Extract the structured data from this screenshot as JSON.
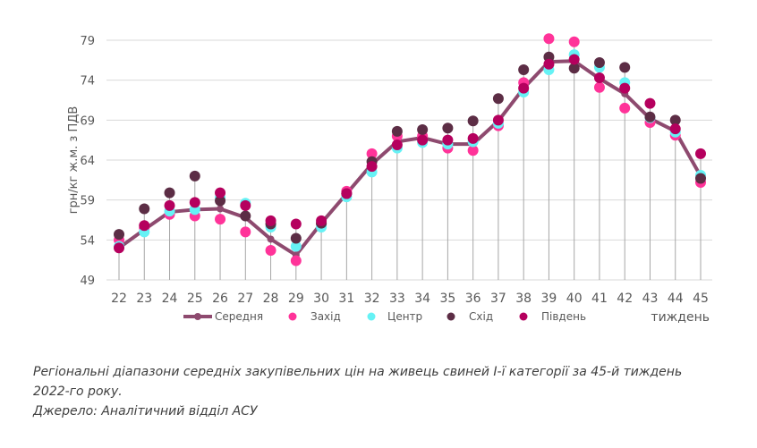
{
  "chart_data": {
    "type": "line",
    "title": "",
    "xlabel": "тиждень",
    "ylabel": "грн/кг ж.м. з ПДВ",
    "ylim": [
      49,
      79
    ],
    "yticks": [
      49,
      54,
      59,
      64,
      69,
      74,
      79
    ],
    "grid": true,
    "legend_position": "bottom",
    "categories": [
      "22",
      "23",
      "24",
      "25",
      "26",
      "27",
      "28",
      "29",
      "30",
      "31",
      "32",
      "33",
      "34",
      "35",
      "36",
      "37",
      "38",
      "39",
      "40",
      "41",
      "42",
      "43",
      "44",
      "45"
    ],
    "series": [
      {
        "name": "Середня",
        "type": "line",
        "color": "#8e4a6f",
        "values": [
          53.0,
          55.3,
          57.5,
          57.8,
          57.9,
          56.8,
          54.1,
          52.1,
          56.1,
          59.8,
          63.5,
          66.3,
          66.8,
          66.0,
          66.0,
          68.9,
          73.0,
          76.3,
          76.4,
          74.2,
          72.3,
          69.2,
          67.6,
          62.0
        ]
      },
      {
        "name": "Захід",
        "type": "scatter",
        "color": "#ff3399",
        "values": [
          54.0,
          55.5,
          57.2,
          57.0,
          56.6,
          55.0,
          52.7,
          51.4,
          56.0,
          60.1,
          64.8,
          67.0,
          67.0,
          65.5,
          65.2,
          68.3,
          73.7,
          79.2,
          78.8,
          73.1,
          70.5,
          68.7,
          67.1,
          61.2
        ]
      },
      {
        "name": "Центр",
        "type": "scatter",
        "color": "#66f2f5",
        "values": [
          53.2,
          55.0,
          57.6,
          57.8,
          59.3,
          58.6,
          55.6,
          53.2,
          55.6,
          59.4,
          62.5,
          65.5,
          66.2,
          66.0,
          66.3,
          68.6,
          72.5,
          75.3,
          77.2,
          75.6,
          73.7,
          69.3,
          67.5,
          62.1
        ]
      },
      {
        "name": "Схід",
        "type": "scatter",
        "color": "#5c2d45",
        "values": [
          54.7,
          57.9,
          59.9,
          62.0,
          58.9,
          57.0,
          56.0,
          54.2,
          56.1,
          59.8,
          63.8,
          67.6,
          67.8,
          68.0,
          68.9,
          71.7,
          75.3,
          76.9,
          75.5,
          76.2,
          75.6,
          69.4,
          69.0,
          61.7
        ]
      },
      {
        "name": "Південь",
        "type": "scatter",
        "color": "#b5005e",
        "values": [
          53.0,
          55.8,
          58.3,
          58.7,
          59.9,
          58.3,
          56.4,
          56.0,
          56.4,
          59.8,
          63.2,
          65.9,
          66.5,
          66.5,
          66.7,
          69.0,
          73.0,
          76.0,
          76.6,
          74.3,
          73.0,
          71.1,
          67.9,
          64.8
        ]
      }
    ]
  },
  "caption": {
    "line1": "Регіональні діапазони середніх закупівельних цін на живець свиней І-ї категорії за 45-й тиждень",
    "line2": "2022-го року.",
    "line3": "Джерело: Аналітичний відділ АСУ"
  }
}
